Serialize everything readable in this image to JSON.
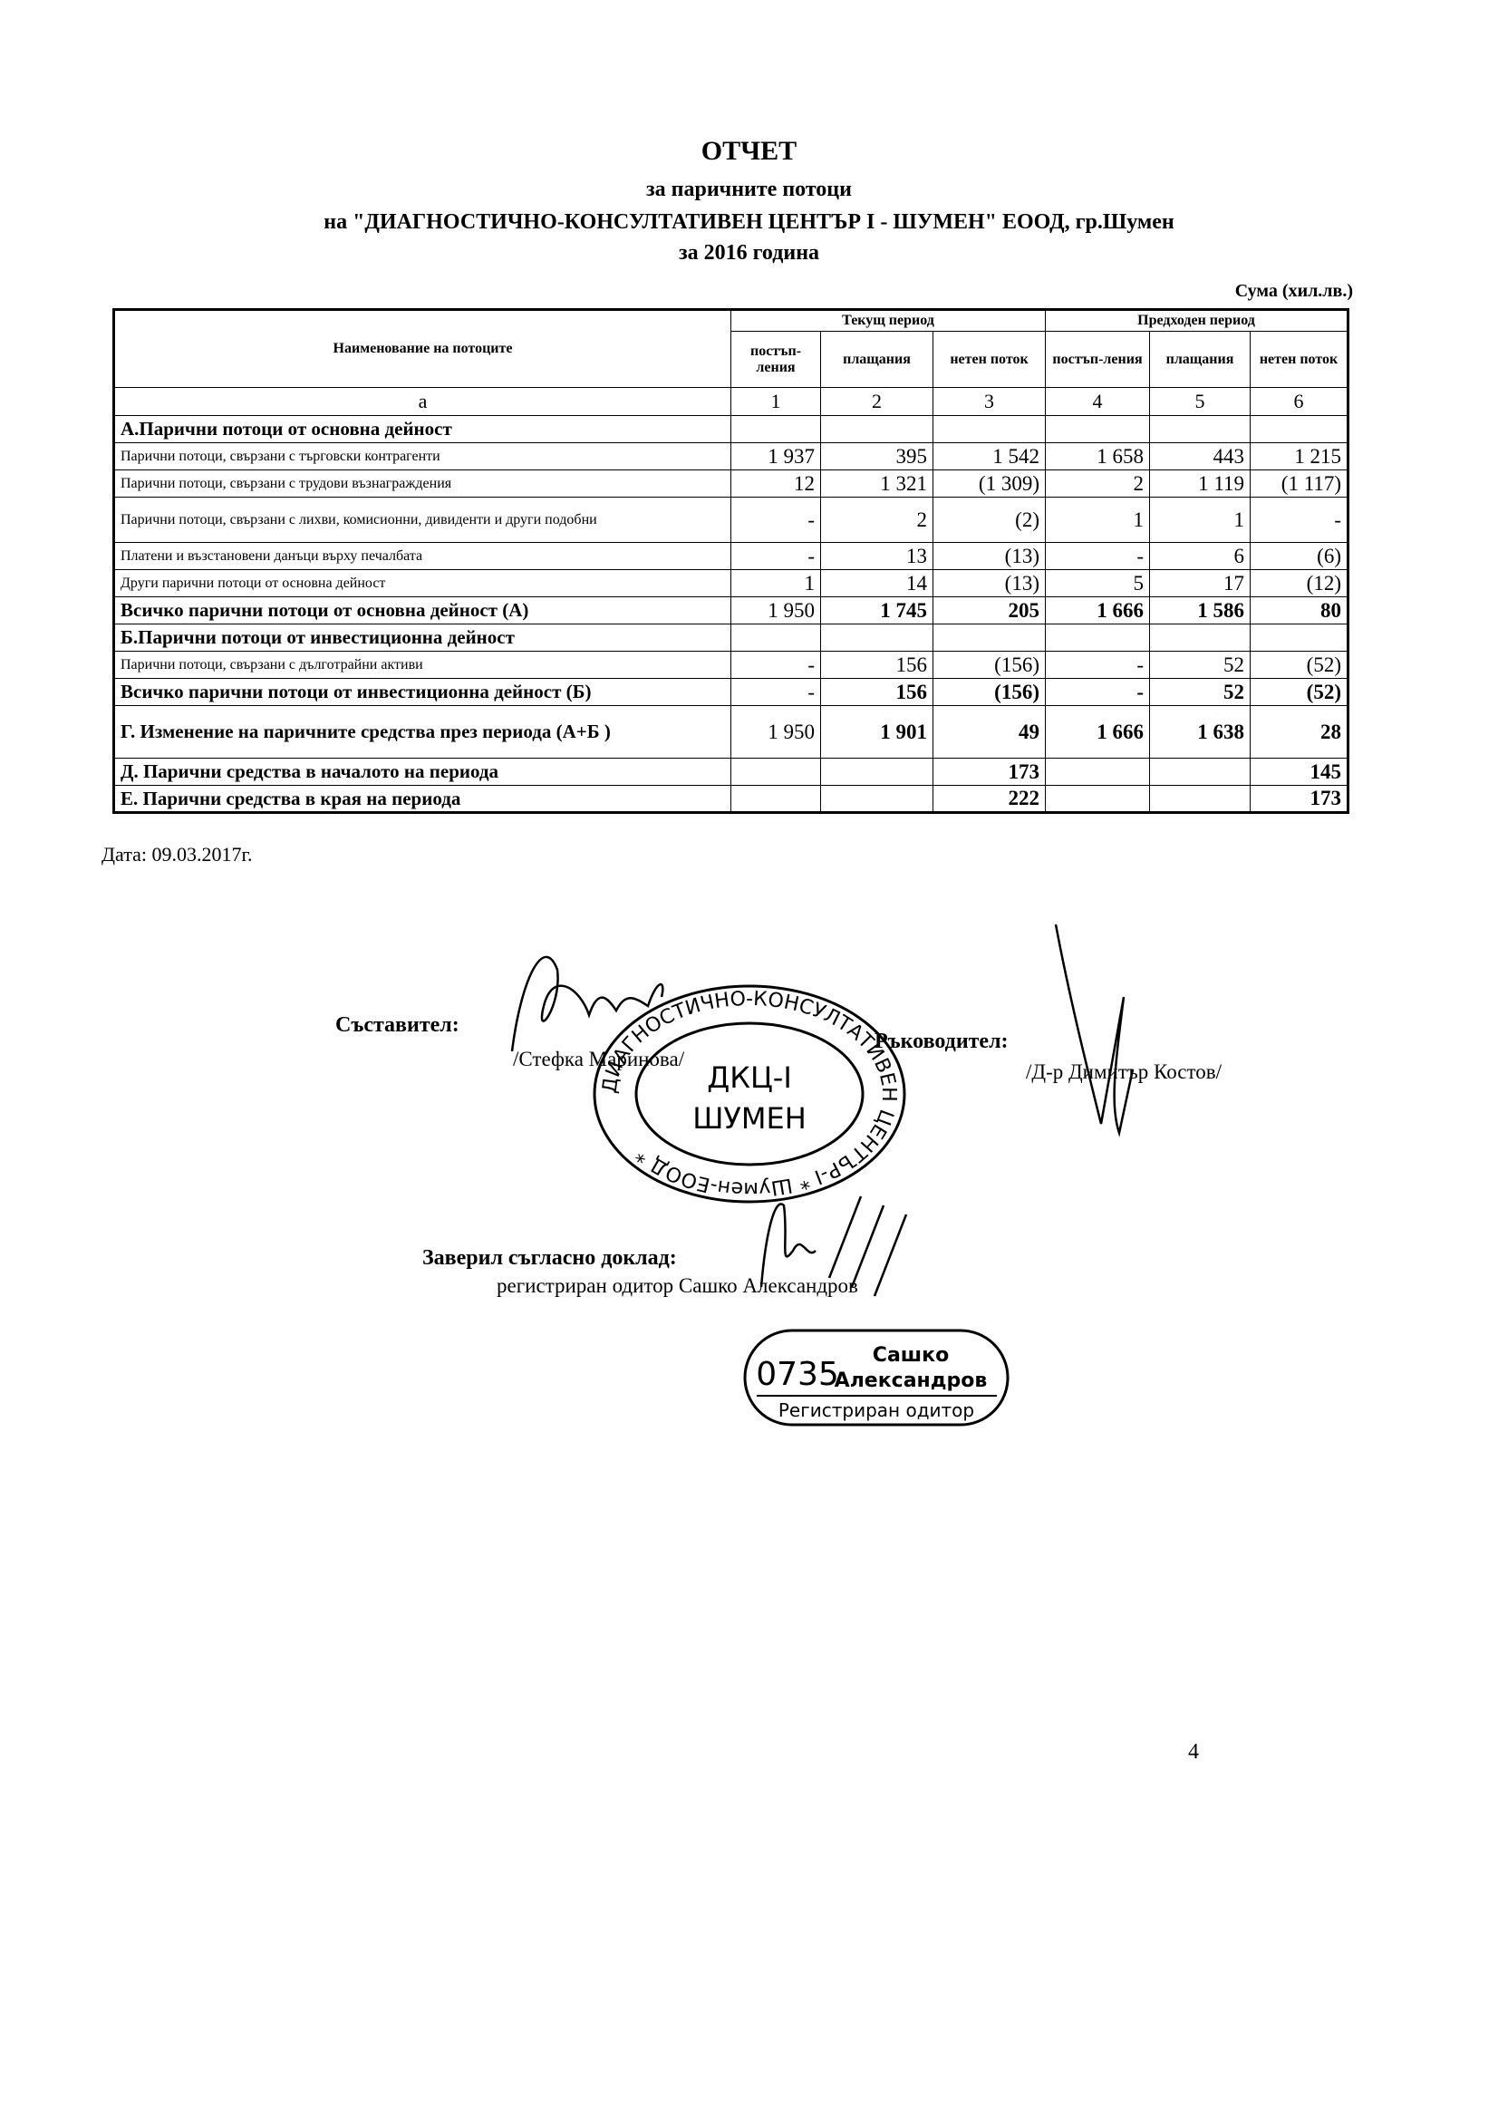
{
  "header": {
    "title": "ОТЧЕТ",
    "subtitle": "за паричните потоци",
    "company": "на \"ДИАГНОСТИЧНО-КОНСУЛТАТИВЕН ЦЕНТЪР I - ШУМЕН\" ЕООД, гр.Шумен",
    "period": "за 2016 година"
  },
  "table": {
    "unit": "Сума (хил.лв.)",
    "name_header": "Наименование на потоците",
    "current_period": "Текущ период",
    "previous_period": "Предходен период",
    "subheaders": [
      "постъп-ления",
      "плащания",
      "нетен поток",
      "постъп-ления",
      "плащания",
      "нетен поток"
    ],
    "column_numbers": [
      "а",
      "1",
      "2",
      "3",
      "4",
      "5",
      "6"
    ],
    "rows": [
      {
        "label": "А.Парични потоци от основна дейност",
        "bold": true,
        "cells": [
          null,
          null,
          null,
          null,
          null,
          null
        ]
      },
      {
        "label": "Парични потоци, свързани с търговски контрагенти",
        "cells": [
          "1 937",
          "395",
          "1 542",
          "1 658",
          "443",
          "1 215"
        ]
      },
      {
        "label": "Парични потоци, свързани с трудови възнаграждения",
        "cells": [
          "12",
          "1 321",
          "(1 309)",
          "2",
          "1 119",
          "(1 117)"
        ]
      },
      {
        "label": "Парични потоци, свързани с лихви, комисионни, дивиденти и други подобни",
        "cells": [
          "-",
          "2",
          "(2)",
          "1",
          "1",
          "-"
        ]
      },
      {
        "label": "Платени и възстановени данъци върху печалбата",
        "cells": [
          "-",
          "13",
          "(13)",
          "-",
          "6",
          "(6)"
        ]
      },
      {
        "label": "Други парични потоци от основна дейност",
        "cells": [
          "1",
          "14",
          "(13)",
          "5",
          "17",
          "(12)"
        ]
      },
      {
        "label": "Всичко парични потоци от основна дейност (А)",
        "bold": true,
        "cells": [
          "1 950",
          "1 745",
          "205",
          "1 666",
          "1 586",
          "80"
        ]
      },
      {
        "label": "Б.Парични потоци от инвестиционна дейност",
        "bold": true,
        "cells": [
          null,
          null,
          null,
          null,
          null,
          null
        ]
      },
      {
        "label": "Парични потоци, свързани с дълготрайни активи",
        "cells": [
          "-",
          "156",
          "(156)",
          "-",
          "52",
          "(52)"
        ]
      },
      {
        "label": "Всичко парични потоци от инвестиционна дейност (Б)",
        "bold": true,
        "cells": [
          "-",
          "156",
          "(156)",
          "-",
          "52",
          "(52)"
        ]
      },
      {
        "label": "Г. Изменение на паричните средства през периода (А+Б )",
        "bold": true,
        "cells": [
          "1 950",
          "1 901",
          "49",
          "1 666",
          "1 638",
          "28"
        ]
      },
      {
        "label": "Д. Парични средства в началото на периода",
        "bold": true,
        "cells": [
          null,
          null,
          "173",
          null,
          null,
          "145"
        ]
      },
      {
        "label": "Е. Парични средства в края на периода",
        "bold": true,
        "cells": [
          null,
          null,
          "222",
          null,
          null,
          "173"
        ]
      }
    ]
  },
  "date": "Дата: 09.03.2017г.",
  "signatures": {
    "compiler_label": "Съставител:",
    "compiler_name": "/Стефка Маринова/",
    "manager_label": "Ръководител:",
    "manager_name": "/Д-р Димитър Костов/",
    "auditor_label": "Заверил съгласно доклад:",
    "auditor_name": "регистриран одитор Сашко Александров"
  },
  "stamps": {
    "company_ring": "ДИАГНОСТИЧНО-КОНСУЛТАТИВЕН ЦЕНТЪР-I * Шумен-ЕООД *",
    "company_line1": "ДКЦ-I",
    "company_line2": "ШУМЕН",
    "auditor_number": "0735",
    "auditor_name_1": "Сашко",
    "auditor_name_2": "Александров",
    "auditor_title": "Регистриран одитор"
  },
  "page_number": "4"
}
